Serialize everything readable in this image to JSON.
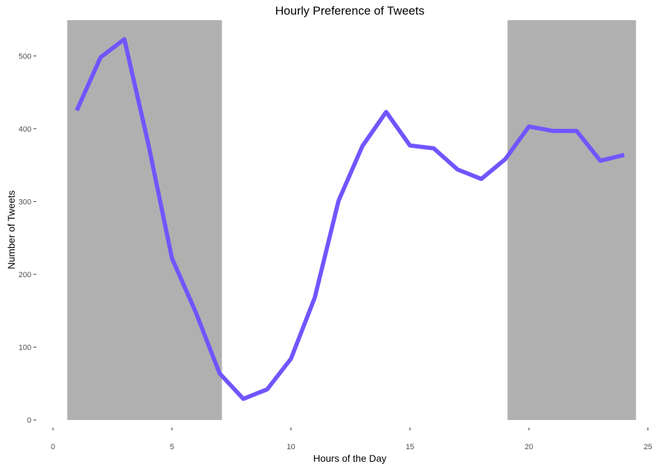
{
  "chart_data": {
    "type": "line",
    "title": "Hourly Preference of Tweets",
    "xlabel": "Hours of the Day",
    "ylabel": "Number of Tweets",
    "xlim": [
      0,
      25
    ],
    "ylim": [
      0,
      550
    ],
    "x_ticks": [
      0,
      5,
      10,
      15,
      20,
      25
    ],
    "x_tick_labels": [
      "0",
      "5",
      "10",
      "15",
      "20",
      "25"
    ],
    "y_ticks": [
      0,
      100,
      200,
      300,
      400,
      500
    ],
    "y_tick_labels": [
      "0",
      "100",
      "200",
      "300",
      "400",
      "500"
    ],
    "grid": false,
    "shaded_ranges": [
      {
        "x_start": 0.6,
        "x_end": 7.1,
        "color": "#b0b0b0"
      },
      {
        "x_start": 19.1,
        "x_end": 24.5,
        "color": "#b0b0b0"
      }
    ],
    "series": [
      {
        "color": "#7155ff",
        "x": [
          1,
          2,
          3,
          4,
          5,
          6,
          7,
          8,
          9,
          10,
          11,
          12,
          13,
          14,
          15,
          16,
          17,
          18,
          19,
          20,
          21,
          22,
          23,
          24
        ],
        "values": [
          425,
          498,
          523,
          380,
          222,
          148,
          64,
          29,
          42,
          84,
          168,
          301,
          376,
          423,
          377,
          373,
          344,
          331,
          358,
          403,
          397,
          397,
          356,
          364
        ]
      }
    ]
  }
}
